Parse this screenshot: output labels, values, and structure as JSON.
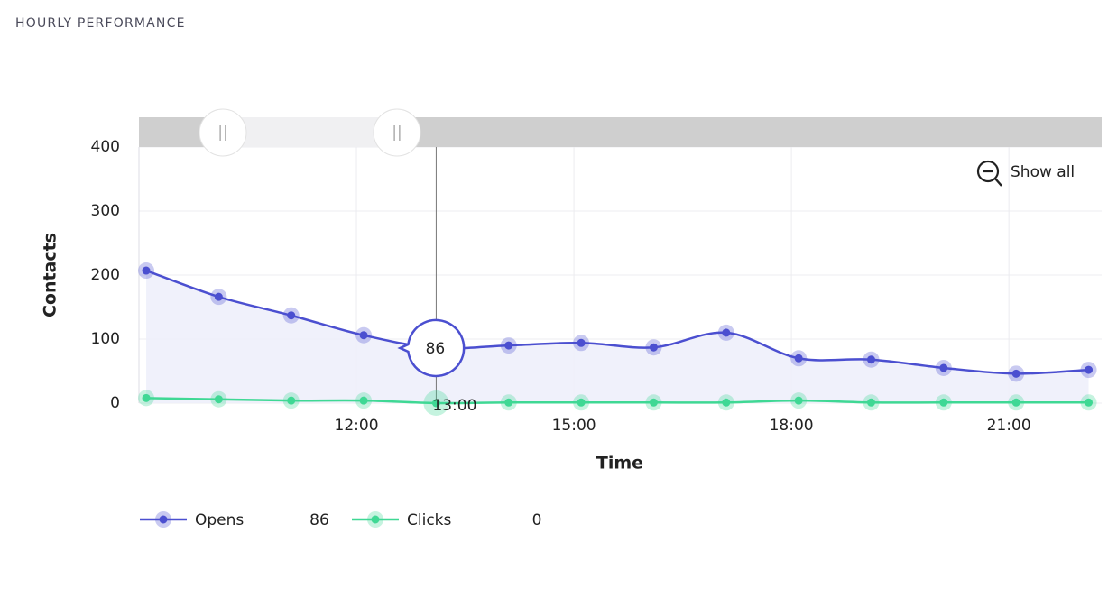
{
  "header": {
    "title": "HOURLY PERFORMANCE"
  },
  "chart_data": {
    "type": "line",
    "x_label": "Time",
    "y_label": "Contacts",
    "x": [
      9.1,
      10.1,
      11.1,
      12.1,
      13.1,
      14.1,
      15.1,
      16.1,
      17.1,
      18.1,
      19.1,
      20.1,
      21.1,
      22.1
    ],
    "series": [
      {
        "name": "Opens",
        "color": "#4b4fd0",
        "values": [
          207,
          166,
          137,
          106,
          86,
          90,
          94,
          87,
          110,
          70,
          68,
          55,
          46,
          52
        ]
      },
      {
        "name": "Clicks",
        "color": "#3fd894",
        "values": [
          8,
          6,
          4,
          4,
          0,
          1,
          1,
          1,
          1,
          4,
          1,
          1,
          1,
          1
        ]
      }
    ],
    "xlim": [
      9,
      22.28
    ],
    "xticks": [
      {
        "value": 12,
        "label": "12:00"
      },
      {
        "value": 15,
        "label": "15:00"
      },
      {
        "value": 18,
        "label": "18:00"
      },
      {
        "value": 21,
        "label": "21:00"
      }
    ],
    "ylim": [
      0,
      400
    ],
    "yticks": [
      0,
      100,
      200,
      300,
      400
    ],
    "grid": true,
    "hover": {
      "index": 4,
      "x_label": "13:00"
    },
    "zoom_button": "Show all"
  }
}
